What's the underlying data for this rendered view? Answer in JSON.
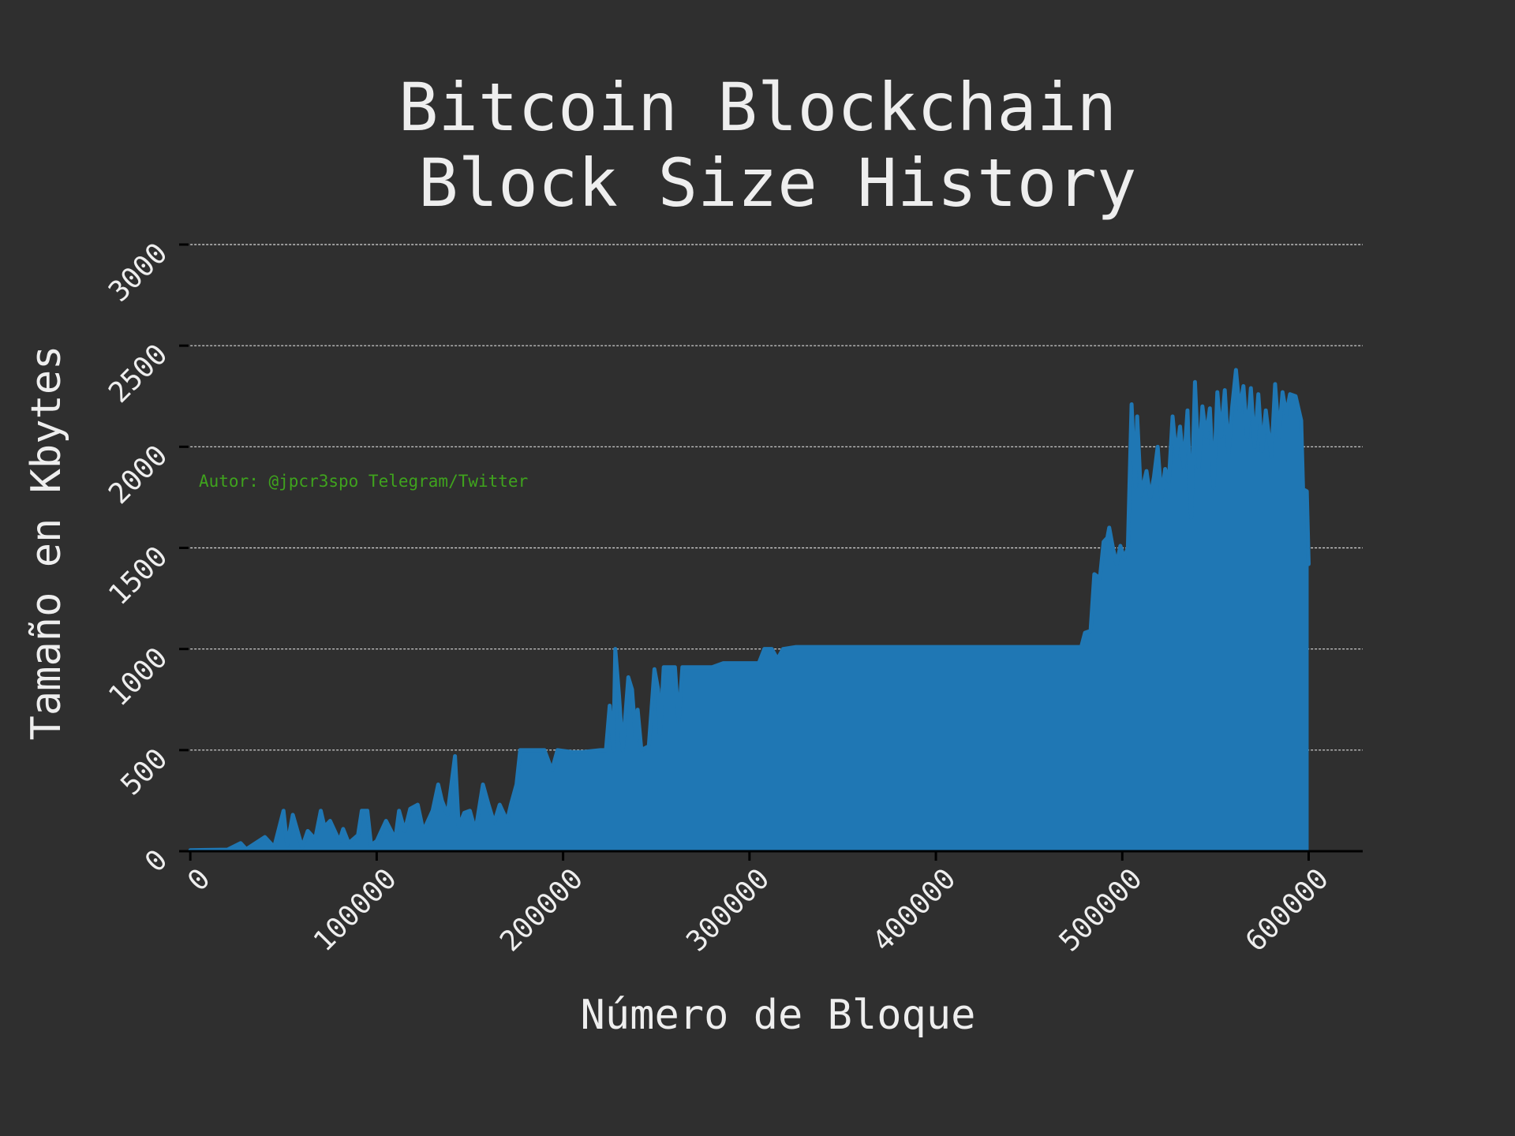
{
  "chart_data": {
    "type": "area",
    "title": "Bitcoin Blockchain\n Block Size History",
    "xlabel": "Número de Bloque",
    "ylabel": "Tamaño en Kbytes",
    "annotation": "Autor: @jpcr3spo Telegram/Twitter",
    "color": "#1f77b4",
    "grid": true,
    "xlim": [
      -6000,
      629000
    ],
    "ylim": [
      0,
      3000
    ],
    "xticks": [
      0,
      100000,
      200000,
      300000,
      400000,
      500000,
      600000
    ],
    "yticks": [
      0,
      500,
      1000,
      1500,
      2000,
      2500,
      3000
    ],
    "x": [
      0,
      20000,
      27000,
      30000,
      40000,
      45000,
      50000,
      52000,
      55000,
      60000,
      63000,
      67000,
      70000,
      72000,
      75000,
      80000,
      82000,
      85000,
      90000,
      92000,
      95000,
      97000,
      100000,
      105000,
      110000,
      112000,
      115000,
      118000,
      122000,
      125000,
      130000,
      133000,
      135000,
      138000,
      142000,
      144000,
      147000,
      150000,
      153000,
      157000,
      160000,
      163000,
      166000,
      170000,
      172000,
      175000,
      177000,
      180000,
      185000,
      190000,
      194000,
      197000,
      205000,
      210000,
      220000,
      223000,
      225000,
      227000,
      228000,
      230000,
      232000,
      235000,
      237000,
      239000,
      240000,
      242000,
      246000,
      249000,
      251000,
      252000,
      254000,
      260000,
      262000,
      264000,
      280000,
      286000,
      305000,
      308000,
      312000,
      315000,
      318000,
      325000,
      478000,
      480000,
      483000,
      485000,
      488000,
      490000,
      492000,
      493000,
      495000,
      497000,
      499000,
      501000,
      503000,
      505000,
      507000,
      508000,
      510000,
      513000,
      515000,
      517000,
      519000,
      521000,
      523000,
      525000,
      527000,
      529000,
      531000,
      533000,
      535000,
      537000,
      539000,
      541000,
      543000,
      545000,
      547000,
      549000,
      551000,
      553000,
      555000,
      557000,
      559000,
      561000,
      563000,
      565000,
      567000,
      569000,
      571000,
      573000,
      575000,
      577000,
      580000,
      582000,
      584000,
      586000,
      588000,
      590000,
      593000,
      596000,
      597000,
      599000,
      600000
    ],
    "values": [
      5,
      8,
      40,
      10,
      70,
      20,
      200,
      30,
      180,
      20,
      100,
      60,
      200,
      120,
      150,
      50,
      110,
      40,
      80,
      200,
      200,
      30,
      50,
      150,
      60,
      200,
      100,
      210,
      230,
      100,
      200,
      330,
      250,
      180,
      470,
      120,
      190,
      200,
      100,
      330,
      230,
      140,
      230,
      150,
      230,
      330,
      500,
      500,
      500,
      500,
      400,
      500,
      490,
      490,
      500,
      500,
      720,
      500,
      1000,
      770,
      500,
      860,
      800,
      550,
      700,
      500,
      520,
      900,
      800,
      580,
      910,
      910,
      640,
      910,
      910,
      930,
      930,
      1000,
      1000,
      950,
      1000,
      1010,
      1010,
      1080,
      1090,
      1370,
      1350,
      1530,
      1550,
      1600,
      1500,
      1420,
      1510,
      1450,
      1500,
      2210,
      1800,
      2150,
      1760,
      1880,
      1750,
      1850,
      2000,
      1750,
      1890,
      1830,
      2150,
      1950,
      2100,
      1900,
      2180,
      1650,
      2320,
      1900,
      2200,
      2050,
      2190,
      1800,
      2270,
      2050,
      2280,
      1970,
      2200,
      2380,
      2180,
      2300,
      2050,
      2290,
      2000,
      2260,
      1980,
      2180,
      1950,
      2310,
      2050,
      2270,
      2160,
      2260,
      2250,
      2130,
      1790,
      1780,
      1420
    ]
  }
}
